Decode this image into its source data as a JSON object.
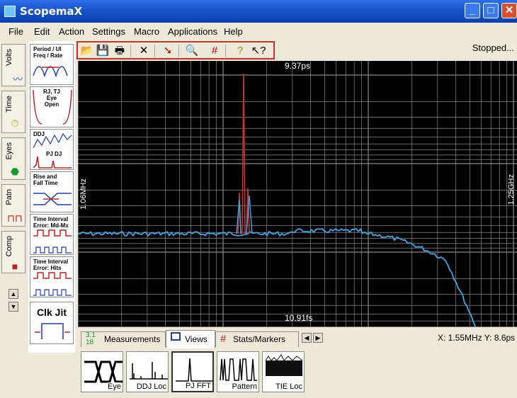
{
  "app": {
    "title": "ScopemaX"
  },
  "menu": [
    "File",
    "Edit",
    "Action",
    "Settings",
    "Macro",
    "Applications",
    "Help"
  ],
  "toolbar": {
    "buttons": [
      "open-icon",
      "save-icon",
      "print-icon",
      "delete-icon",
      "run-icon",
      "zoom-icon",
      "grid-icon",
      "help-icon",
      "context-help-icon"
    ]
  },
  "status": {
    "text": "Stopped..."
  },
  "side_tabs": [
    "Volts",
    "Time",
    "Eyes",
    "Patn",
    "Comp"
  ],
  "tools": [
    {
      "line1": "Period / UI",
      "line2": "Freq / Rate"
    },
    {
      "line1": "RJ, TJ",
      "line2": "Eye Open"
    },
    {
      "line1": "DDJ",
      "line2": "PJ DJ"
    },
    {
      "line1": "Rise and",
      "line2": "Fall Time"
    },
    {
      "line1": "Time Interval",
      "line2": "Error: Md-Mx"
    },
    {
      "line1": "Time Interval",
      "line2": "Error: Hits"
    },
    {
      "line1": "Clk Jit",
      "line2": ""
    }
  ],
  "plot": {
    "top_label": "9.37ps",
    "bottom_label": "10.91fs",
    "left_label": "1.06MHz",
    "right_label": "1.25GHz",
    "trace_color": "#3aa8e8",
    "spike_color": "#c83232"
  },
  "tabs": [
    {
      "label": "Measurements",
      "icon": "measurements-icon"
    },
    {
      "label": "Views",
      "icon": "views-icon"
    },
    {
      "label": "Stats/Markers",
      "icon": "stats-icon"
    }
  ],
  "coordinates": {
    "text": "X: 1.55MHz Y: 8.6ps"
  },
  "views": [
    "Eye",
    "DDJ Loc",
    "PJ FFT",
    "Pattern",
    "TIE Loc"
  ]
}
